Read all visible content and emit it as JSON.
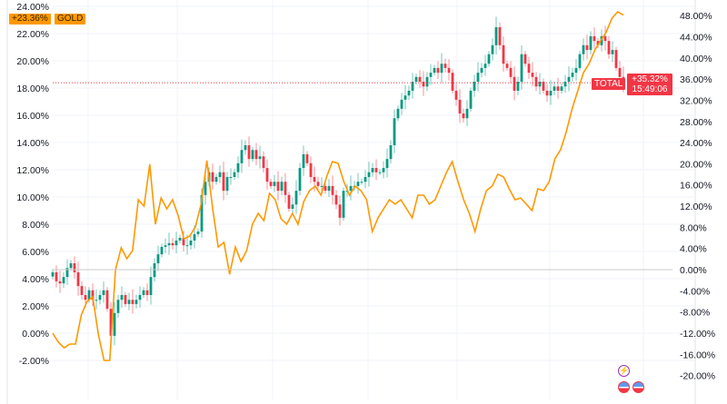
{
  "chart_data": {
    "type": "candlestick+line",
    "left_axis": {
      "ticks": [
        "24.00%",
        "22.00%",
        "20.00%",
        "18.00%",
        "16.00%",
        "14.00%",
        "12.00%",
        "10.00%",
        "8.00%",
        "6.00%",
        "4.00%",
        "2.00%",
        "0.00%",
        "-2.00%"
      ],
      "range": [
        -2.5,
        24.5
      ]
    },
    "right_axis": {
      "ticks": [
        "48.00%",
        "44.00%",
        "40.00%",
        "36.00%",
        "32.00%",
        "28.00%",
        "24.00%",
        "20.00%",
        "16.00%",
        "12.00%",
        "8.00%",
        "4.00%",
        "0.00%",
        "-4.00%",
        "-8.00%",
        "-12.00%",
        "-16.00%",
        "-20.00%"
      ],
      "range": [
        -22,
        51
      ]
    },
    "grid": true,
    "series": [
      {
        "name": "GOLD",
        "axis": "left",
        "style": "line",
        "color": "#ff9800",
        "last_label": "+23.36%",
        "values": [
          0,
          -0.67,
          -1.07,
          -0.8,
          -0.8,
          1.33,
          2.33,
          2.67,
          -0.07,
          -2,
          -2,
          4.67,
          6.27,
          5.47,
          6.07,
          9.8,
          9.33,
          12.4,
          8,
          9.93,
          9.13,
          9.8,
          8.6,
          6.93,
          7.13,
          7.8,
          9.47,
          12.67,
          9.27,
          6.33,
          6.67,
          4.33,
          6.33,
          5.27,
          6.07,
          8,
          8.8,
          8.27,
          10.27,
          9.8,
          8.4,
          8,
          8.8,
          8,
          9.67,
          10.47,
          10.8,
          10.13,
          11.47,
          12.6,
          12.47,
          11.13,
          10.13,
          10.8,
          10.47,
          9.8,
          7.47,
          8.47,
          9.13,
          9.8,
          9.47,
          9.8,
          9.13,
          8.47,
          10.13,
          10.13,
          9.47,
          9.8,
          10.8,
          11.8,
          12.6,
          11.13,
          9.8,
          8.8,
          7.47,
          9.13,
          10.47,
          10.8,
          11.67,
          11.47,
          10.6,
          9.8,
          9.93,
          9.47,
          9,
          10.6,
          10.47,
          11.13,
          12.8,
          13.47,
          14.8,
          16.47,
          17.8,
          19.13,
          19.8,
          20.8,
          21.47,
          22.13,
          23.13,
          23.6,
          23.36
        ]
      },
      {
        "name": "TOTAL",
        "axis": "right",
        "style": "candles",
        "up_color": "#089981",
        "down_color": "#f23645",
        "last_label": "+35.32%",
        "countdown": "15:49:06",
        "closes": [
          -0.5,
          -2.2,
          -2.6,
          -1.4,
          0.3,
          1.2,
          -0.5,
          -3.1,
          -4.8,
          -5.7,
          -3.9,
          -5.7,
          -5.7,
          -4.8,
          -3.9,
          -7.4,
          -12.5,
          -8.2,
          -5.7,
          -4.8,
          -6.5,
          -5.7,
          -6.5,
          -5.7,
          -4.8,
          -3.9,
          -4.8,
          -1.4,
          1.2,
          2.9,
          4.3,
          4.6,
          5.0,
          4.6,
          5.5,
          6.0,
          4.6,
          4.6,
          5.5,
          6.7,
          7.2,
          14.1,
          16.6,
          18.4,
          16.6,
          17.5,
          18.4,
          14.9,
          17.5,
          17.5,
          18.4,
          20.1,
          22.6,
          23.5,
          20.9,
          22.6,
          20.9,
          21.4,
          19.2,
          16.6,
          15.8,
          16.6,
          14.9,
          16.6,
          14.1,
          11.5,
          12.3,
          14.9,
          19.2,
          21.8,
          20.1,
          17.5,
          16.6,
          15.8,
          15.8,
          14.9,
          15.8,
          14.1,
          12.3,
          9.8,
          14.9,
          14.9,
          15.8,
          15.8,
          16.6,
          16.6,
          17.5,
          18.4,
          19.2,
          18.4,
          18.4,
          19.2,
          20.9,
          23.5,
          28.6,
          30.4,
          32.1,
          32.9,
          33.8,
          35.5,
          36.4,
          35.5,
          34.6,
          36.4,
          37.2,
          38.1,
          37.2,
          38.9,
          38.1,
          37.2,
          33.8,
          32.1,
          29.5,
          28.6,
          30.4,
          33.8,
          35.5,
          37.2,
          38.1,
          38.9,
          40.7,
          42.4,
          45.8,
          42.4,
          38.9,
          38.1,
          36.4,
          33.8,
          35.5,
          40.7,
          38.9,
          37.2,
          36.4,
          34.6,
          35.5,
          33.8,
          32.9,
          33.8,
          34.6,
          33.8,
          34.6,
          35.5,
          36.4,
          37.2,
          38.1,
          40.7,
          42.4,
          41.5,
          44.1,
          43.2,
          42.4,
          44.1,
          43.2,
          40.7,
          41.5,
          38.1,
          36.4,
          35.32
        ]
      }
    ]
  },
  "legend": {
    "gold_value": "+23.36%",
    "gold_name": "GOLD",
    "total_name": "TOTAL",
    "total_value": "+35.32%",
    "total_countdown": "15:49:06"
  },
  "icons": {
    "event": "lightning-icon",
    "flags": [
      "us-flag-icon",
      "us-flag-icon"
    ]
  }
}
